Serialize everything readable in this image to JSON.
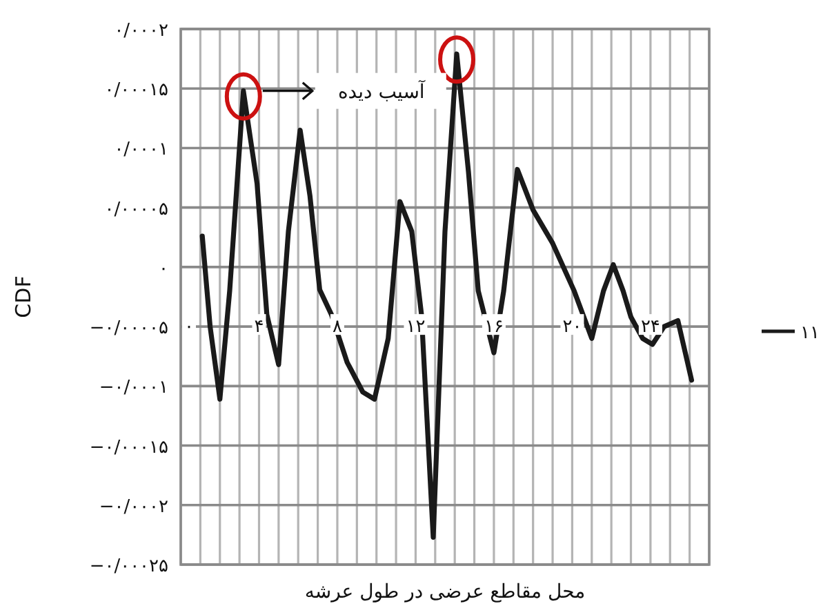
{
  "chart_data": {
    "type": "line",
    "xlabel": "محل مقاطع عرضی در طول عرشه",
    "ylabel": "CDF",
    "xlim": [
      0,
      27
    ],
    "xticks": [
      {
        "value": 0,
        "label": "۰"
      },
      {
        "value": 1,
        "label": null
      },
      {
        "value": 2,
        "label": null
      },
      {
        "value": 3,
        "label": null
      },
      {
        "value": 4,
        "label": "۴"
      },
      {
        "value": 5,
        "label": null
      },
      {
        "value": 6,
        "label": null
      },
      {
        "value": 7,
        "label": null
      },
      {
        "value": 8,
        "label": "۸"
      },
      {
        "value": 9,
        "label": null
      },
      {
        "value": 10,
        "label": null
      },
      {
        "value": 11,
        "label": null
      },
      {
        "value": 12,
        "label": "۱۲"
      },
      {
        "value": 13,
        "label": null
      },
      {
        "value": 14,
        "label": null
      },
      {
        "value": 15,
        "label": null
      },
      {
        "value": 16,
        "label": "۱۶"
      },
      {
        "value": 17,
        "label": null
      },
      {
        "value": 18,
        "label": null
      },
      {
        "value": 19,
        "label": null
      },
      {
        "value": 20,
        "label": "۲۰"
      },
      {
        "value": 21,
        "label": null
      },
      {
        "value": 22,
        "label": null
      },
      {
        "value": 23,
        "label": null
      },
      {
        "value": 24,
        "label": "۲۴"
      },
      {
        "value": 25,
        "label": null
      },
      {
        "value": 26,
        "label": null
      },
      {
        "value": 27,
        "label": null
      }
    ],
    "ylim": [
      -0.00025,
      0.0002
    ],
    "yticks": [
      {
        "value": 0.0002,
        "label": "۰/۰۰۰۲"
      },
      {
        "value": 0.00015,
        "label": "۰/۰۰۰۱۵"
      },
      {
        "value": 0.0001,
        "label": "۰/۰۰۰۱"
      },
      {
        "value": 5e-05,
        "label": "۰/۰۰۰۰۵"
      },
      {
        "value": 0,
        "label": "۰"
      },
      {
        "value": -5e-05,
        "label": "−۰/۰۰۰۰۵"
      },
      {
        "value": -0.0001,
        "label": "−۰/۰۰۰۱"
      },
      {
        "value": -0.00015,
        "label": "−۰/۰۰۰۱۵"
      },
      {
        "value": -0.0002,
        "label": "−۰/۰۰۰۲"
      },
      {
        "value": -0.00025,
        "label": "−۰/۰۰۰۲۵"
      }
    ],
    "grid": true,
    "legend": "right",
    "annotations": [
      "آسیب دیده"
    ],
    "series": [
      {
        "name": "۱۱",
        "color": "#1a1a1a",
        "x": [
          1.1,
          1.5,
          2.0,
          2.5,
          3.2,
          3.9,
          4.4,
          5.0,
          5.5,
          6.1,
          6.6,
          7.1,
          7.7,
          8.5,
          9.3,
          9.9,
          10.6,
          11.2,
          11.8,
          12.3,
          12.9,
          13.5,
          14.1,
          14.7,
          15.2,
          16.0,
          16.5,
          17.2,
          18.0,
          19.0,
          20.1,
          21.0,
          21.6,
          22.1,
          22.6,
          23.0,
          23.6,
          24.1,
          24.7,
          25.4,
          26.1
        ],
        "values": [
          2.6e-05,
          -5e-05,
          -0.000111,
          -2e-05,
          0.000148,
          7e-05,
          -4e-05,
          -8.2e-05,
          3e-05,
          0.000115,
          6e-05,
          -1.9e-05,
          -4e-05,
          -8e-05,
          -0.000105,
          -0.000111,
          -6e-05,
          5.5e-05,
          3e-05,
          -4e-05,
          -0.000227,
          3e-05,
          0.000179,
          8e-05,
          -2e-05,
          -7.2e-05,
          -2e-05,
          8.2e-05,
          4.8e-05,
          2e-05,
          -2e-05,
          -6e-05,
          -2e-05,
          2e-06,
          -2e-05,
          -4.2e-05,
          -6e-05,
          -6.5e-05,
          -5e-05,
          -4.5e-05,
          -9.5e-05
        ]
      }
    ]
  }
}
